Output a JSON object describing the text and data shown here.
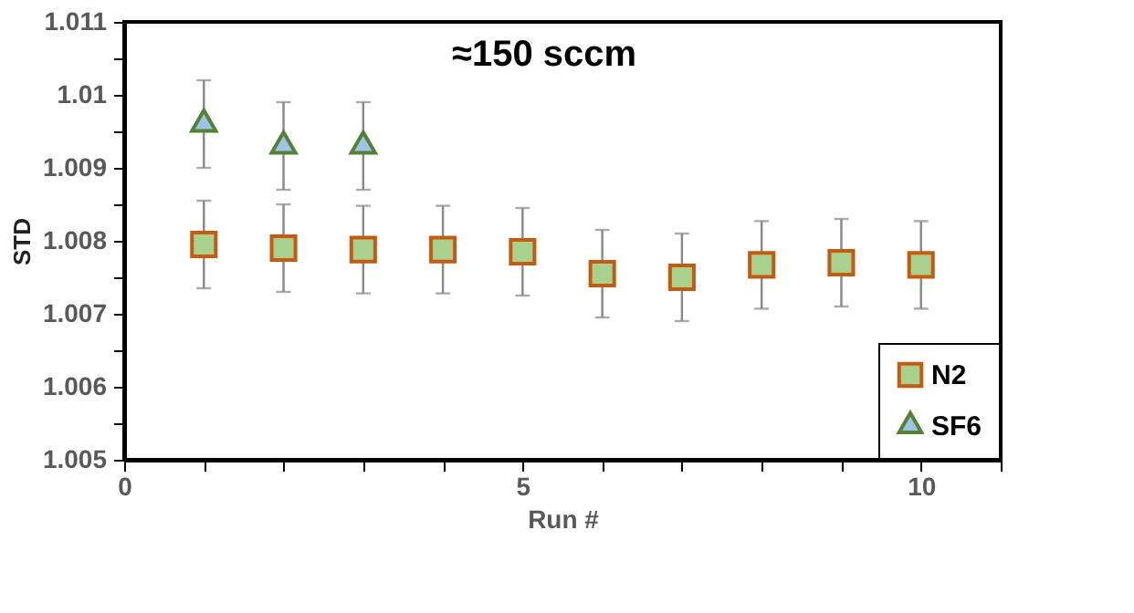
{
  "chart_data": {
    "type": "scatter",
    "x": [
      1,
      2,
      3,
      4,
      5,
      6,
      7,
      8,
      9,
      10
    ],
    "series": [
      {
        "name": "N2",
        "color": "#a9d18e",
        "marker": "square",
        "values": [
          1.00795,
          1.0079,
          1.00788,
          1.00788,
          1.00785,
          1.00755,
          1.0075,
          1.00767,
          1.0077,
          1.00767
        ],
        "errors": [
          0.0006,
          0.0006,
          0.0006,
          0.0006,
          0.0006,
          0.0006,
          0.0006,
          0.0006,
          0.0006,
          0.0006
        ]
      },
      {
        "name": "SF6",
        "color": "#9dc3e6",
        "marker": "triangle",
        "x": [
          1,
          2,
          3
        ],
        "values": [
          1.0096,
          1.0093,
          1.0093
        ],
        "errors": [
          0.0006,
          0.0006,
          0.0006
        ]
      }
    ],
    "xlabel": "Run #",
    "ylabel": "STD",
    "annotations": [
      "≈150 sccm"
    ],
    "xlim": [
      0,
      11
    ],
    "ylim": [
      1.005,
      1.011
    ],
    "xticks": [
      0,
      {
        "value": 1,
        "label": null
      },
      {
        "value": 2,
        "label": null
      },
      {
        "value": 3,
        "label": null
      },
      {
        "value": 4,
        "label": null
      },
      5,
      {
        "value": 6,
        "label": null
      },
      {
        "value": 7,
        "label": null
      },
      {
        "value": 8,
        "label": null
      },
      {
        "value": 9,
        "label": null
      },
      10,
      {
        "value": 11,
        "label": null
      }
    ],
    "yticks": [
      {
        "value": 1.005,
        "label": "1.005"
      },
      {
        "value": 1.0055,
        "label": null
      },
      {
        "value": 1.006,
        "label": "1.006"
      },
      {
        "value": 1.0065,
        "label": null
      },
      {
        "value": 1.007,
        "label": "1.007"
      },
      {
        "value": 1.0075,
        "label": null
      },
      {
        "value": 1.008,
        "label": "1.008"
      },
      {
        "value": 1.0085,
        "label": null
      },
      {
        "value": 1.009,
        "label": "1.009"
      },
      {
        "value": 1.0095,
        "label": null
      },
      {
        "value": 1.01,
        "label": "1.01"
      },
      {
        "value": 1.0105,
        "label": null
      },
      {
        "value": 1.011,
        "label": "1.011"
      }
    ],
    "grid": false,
    "legend": "bottom right"
  }
}
